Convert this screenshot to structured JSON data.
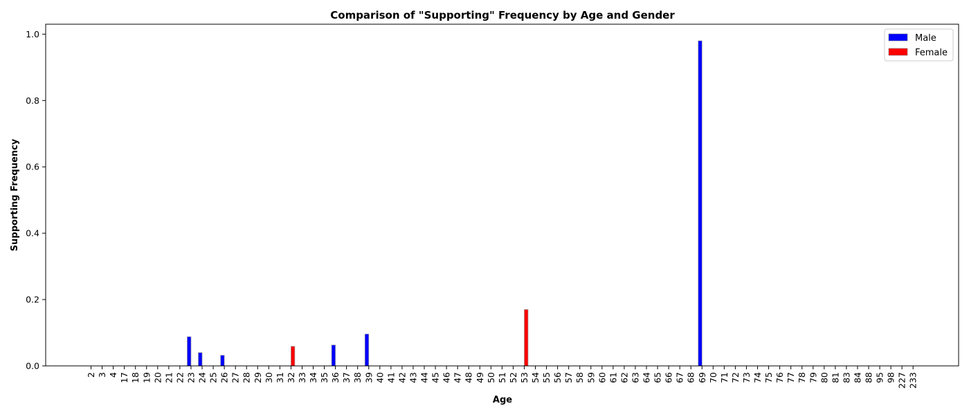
{
  "chart_data": {
    "type": "bar",
    "title": "Comparison of \"Supporting\" Frequency by Age and Gender",
    "xlabel": "Age",
    "ylabel": "Supporting Frequency",
    "ylim": [
      0,
      1.03
    ],
    "yticks": [
      "0.0",
      "0.2",
      "0.4",
      "0.6",
      "0.8",
      "1.0"
    ],
    "legend_position": "top-right",
    "grid": false,
    "categories": [
      "2",
      "3",
      "4",
      "17",
      "18",
      "19",
      "20",
      "21",
      "22",
      "23",
      "24",
      "25",
      "26",
      "27",
      "28",
      "29",
      "30",
      "31",
      "32",
      "33",
      "34",
      "35",
      "36",
      "37",
      "38",
      "39",
      "40",
      "41",
      "42",
      "43",
      "44",
      "45",
      "46",
      "47",
      "48",
      "49",
      "50",
      "51",
      "52",
      "53",
      "54",
      "55",
      "56",
      "57",
      "58",
      "59",
      "60",
      "61",
      "62",
      "63",
      "64",
      "65",
      "66",
      "67",
      "68",
      "69",
      "70",
      "71",
      "72",
      "73",
      "74",
      "75",
      "76",
      "77",
      "78",
      "79",
      "80",
      "81",
      "83",
      "84",
      "88",
      "95",
      "98",
      "227",
      "233"
    ],
    "series": [
      {
        "name": "Male",
        "color": "#0000ff",
        "values": [
          0,
          0,
          0,
          0,
          0,
          0,
          0,
          0,
          0,
          0.088,
          0.04,
          0,
          0.032,
          0,
          0,
          0,
          0,
          0,
          0,
          0,
          0,
          0,
          0.063,
          0,
          0,
          0.096,
          0,
          0,
          0,
          0,
          0,
          0,
          0,
          0,
          0,
          0,
          0,
          0,
          0,
          0,
          0,
          0,
          0,
          0,
          0,
          0,
          0,
          0,
          0,
          0,
          0,
          0,
          0,
          0,
          0,
          0.98,
          0,
          0,
          0,
          0,
          0,
          0,
          0,
          0,
          0,
          0,
          0,
          0,
          0,
          0,
          0,
          0,
          0,
          0,
          0
        ]
      },
      {
        "name": "Female",
        "color": "#ff0000",
        "values": [
          0,
          0,
          0,
          0,
          0,
          0,
          0,
          0,
          0,
          0,
          0,
          0,
          0,
          0,
          0,
          0,
          0,
          0,
          0.059,
          0,
          0,
          0,
          0,
          0,
          0,
          0,
          0,
          0,
          0,
          0,
          0,
          0,
          0,
          0,
          0,
          0,
          0,
          0,
          0,
          0.17,
          0,
          0,
          0,
          0,
          0,
          0,
          0,
          0,
          0,
          0,
          0,
          0,
          0,
          0,
          0,
          0,
          0,
          0,
          0,
          0,
          0,
          0,
          0,
          0,
          0,
          0,
          0,
          0,
          0,
          0,
          0,
          0,
          0,
          0,
          0
        ]
      }
    ]
  }
}
